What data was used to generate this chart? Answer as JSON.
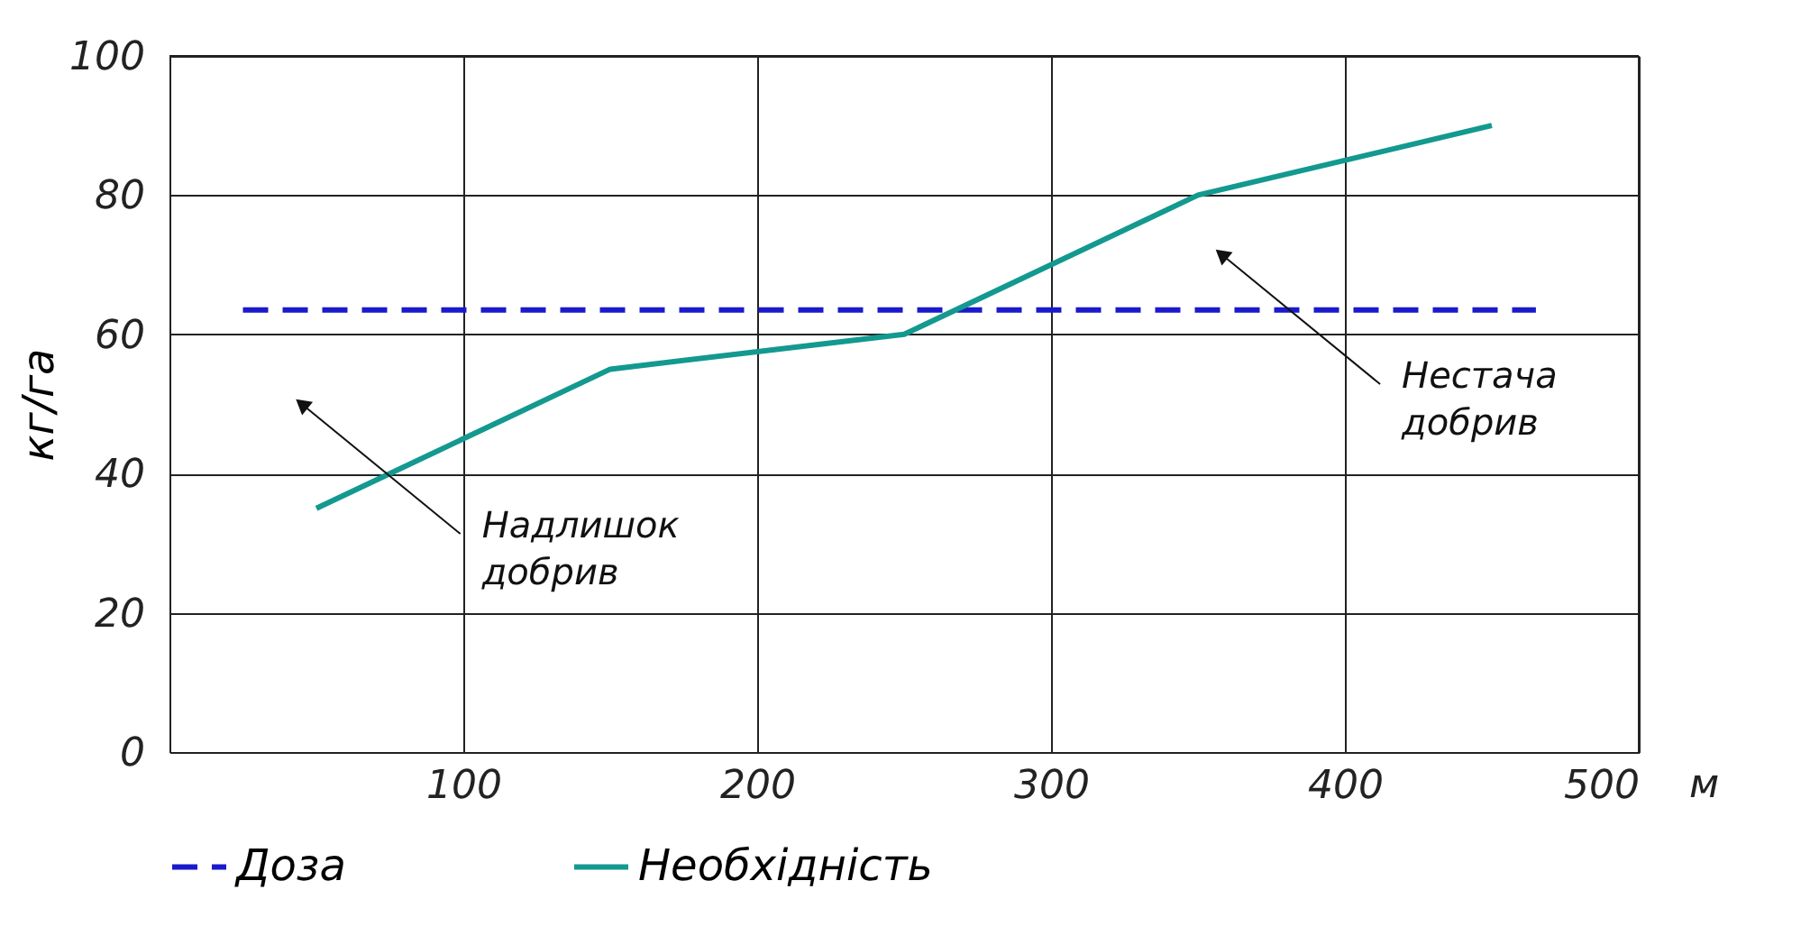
{
  "chart_data": {
    "type": "line",
    "xlabel": "м",
    "ylabel": "кг/га",
    "series": [
      {
        "name": "Доза",
        "color": "#1a1acc",
        "line_style": "dashed",
        "x": [
          25,
          465
        ],
        "values": [
          63.5,
          63.5
        ]
      },
      {
        "name": "Необхідність",
        "color": "#13998f",
        "line_style": "solid",
        "x": [
          50,
          150,
          250,
          350,
          450
        ],
        "values": [
          35,
          55,
          60,
          80,
          90
        ]
      }
    ],
    "annotations": [
      {
        "text": "Надлишок\nдобрив",
        "x": 45,
        "y": 50
      },
      {
        "text": "Нестача\nдобрив",
        "x": 358,
        "y": 71.5
      }
    ],
    "xlim": [
      0,
      500
    ],
    "xticks": [
      100,
      200,
      300,
      400,
      500
    ],
    "ylim": [
      0,
      100
    ],
    "yticks": [
      0,
      20,
      40,
      60,
      80,
      100
    ],
    "grid": true,
    "legend": "bottom",
    "marker": "none"
  }
}
